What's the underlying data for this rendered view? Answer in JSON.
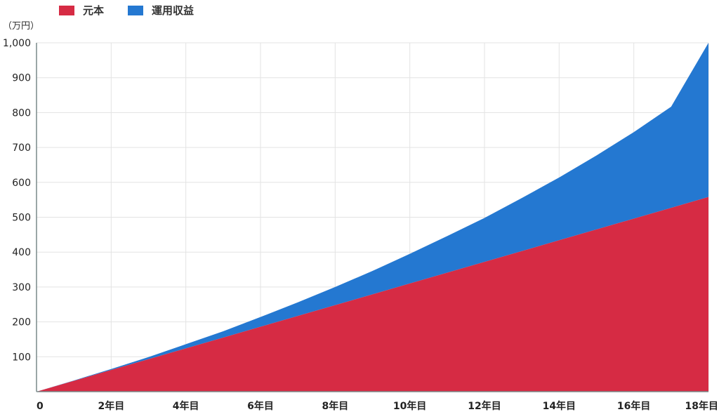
{
  "chart_data": {
    "type": "area",
    "stacked": true,
    "unit_label": "（万円）",
    "x": [
      0,
      1,
      2,
      3,
      4,
      5,
      6,
      7,
      8,
      9,
      10,
      11,
      12,
      13,
      14,
      15,
      16,
      17,
      18
    ],
    "x_tick_labels": [
      "0",
      "2年目",
      "4年目",
      "6年目",
      "8年目",
      "10年目",
      "12年目",
      "14年目",
      "16年目",
      "18年目"
    ],
    "x_tick_values": [
      0,
      2,
      4,
      6,
      8,
      10,
      12,
      14,
      16,
      18
    ],
    "ylim": [
      0,
      1000
    ],
    "y_tick_values": [
      100,
      200,
      300,
      400,
      500,
      600,
      700,
      800,
      900,
      1000
    ],
    "y_tick_labels": [
      "100",
      "200",
      "300",
      "400",
      "500",
      "600",
      "700",
      "800",
      "900",
      "1,000"
    ],
    "grid": true,
    "legend_position": "top-left",
    "series": [
      {
        "name": "元本",
        "color": "#d62b44",
        "values": [
          0,
          31,
          62,
          93,
          124,
          155,
          186,
          217,
          248,
          279,
          310,
          341,
          372,
          403,
          434,
          465,
          496,
          527,
          558
        ]
      },
      {
        "name": "運用収益",
        "color": "#2478d1",
        "values": [
          0,
          1,
          3,
          6,
          12,
          18,
          28,
          39,
          52,
          67,
          85,
          105,
          126,
          152,
          180,
          212,
          248,
          290,
          442
        ]
      }
    ]
  }
}
